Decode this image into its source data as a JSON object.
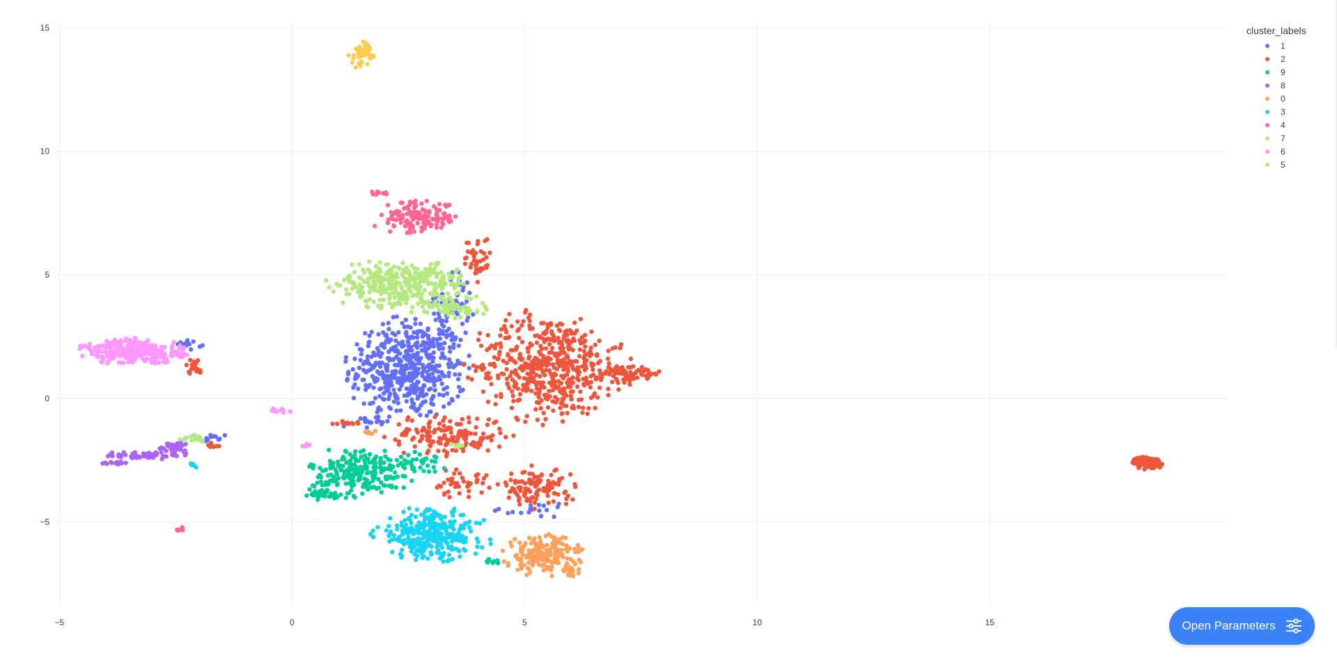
{
  "chart_data": {
    "type": "scatter",
    "title": "",
    "xlabel": "",
    "ylabel": "",
    "xlim": [
      -5.2,
      20.1
    ],
    "ylim": [
      -8.5,
      15.5
    ],
    "x_ticks": [
      -5,
      0,
      5,
      10,
      15
    ],
    "y_ticks": [
      -5,
      0,
      5,
      10,
      15
    ],
    "x_tick_labels": [
      "−5",
      "0",
      "5",
      "10",
      "15"
    ],
    "y_tick_labels": [
      "−5",
      "0",
      "5",
      "10",
      "15"
    ],
    "grid": true,
    "legend": {
      "title": "cluster_labels",
      "placement": "top-right",
      "entries": [
        "1",
        "2",
        "9",
        "8",
        "0",
        "3",
        "4",
        "7",
        "6",
        "5"
      ]
    },
    "series": [
      {
        "name": "1",
        "color": "#636efa",
        "regions": [
          {
            "cx": 2.5,
            "cy": 1.2,
            "rx": 1.25,
            "ry": 2.0,
            "n": 520
          },
          {
            "cx": 3.4,
            "cy": 3.8,
            "rx": 0.5,
            "ry": 1.3,
            "n": 60
          },
          {
            "cx": -2.2,
            "cy": 2.2,
            "rx": 0.25,
            "ry": 0.2,
            "n": 14
          },
          {
            "cx": -1.8,
            "cy": -1.6,
            "rx": 0.5,
            "ry": 0.15,
            "n": 14
          },
          {
            "cx": 5.2,
            "cy": -4.5,
            "rx": 0.8,
            "ry": 0.3,
            "n": 18
          },
          {
            "cx": 1.6,
            "cy": -1.0,
            "rx": 0.5,
            "ry": 0.3,
            "n": 16
          }
        ]
      },
      {
        "name": "2",
        "color": "#ef553b",
        "regions": [
          {
            "cx": 5.5,
            "cy": 1.3,
            "rx": 1.6,
            "ry": 2.1,
            "n": 520
          },
          {
            "cx": 7.3,
            "cy": 1.0,
            "rx": 0.7,
            "ry": 0.4,
            "n": 70
          },
          {
            "cx": 3.3,
            "cy": -1.5,
            "rx": 1.3,
            "ry": 0.8,
            "n": 160
          },
          {
            "cx": 5.3,
            "cy": -3.6,
            "rx": 0.8,
            "ry": 0.8,
            "n": 110
          },
          {
            "cx": 4.0,
            "cy": 5.6,
            "rx": 0.3,
            "ry": 1.0,
            "n": 40
          },
          {
            "cx": 3.6,
            "cy": -3.4,
            "rx": 0.6,
            "ry": 0.6,
            "n": 40
          },
          {
            "cx": 18.4,
            "cy": -2.6,
            "rx": 0.3,
            "ry": 0.25,
            "n": 90
          },
          {
            "cx": -2.1,
            "cy": 1.3,
            "rx": 0.18,
            "ry": 0.3,
            "n": 18
          },
          {
            "cx": 1.1,
            "cy": -1.0,
            "rx": 0.4,
            "ry": 0.1,
            "n": 12
          },
          {
            "cx": -1.7,
            "cy": -1.9,
            "rx": 0.2,
            "ry": 0.15,
            "n": 8
          }
        ]
      },
      {
        "name": "9",
        "color": "#00cc96",
        "regions": [
          {
            "cx": 1.5,
            "cy": -3.0,
            "rx": 1.1,
            "ry": 1.0,
            "n": 240
          },
          {
            "cx": 0.6,
            "cy": -3.9,
            "rx": 0.5,
            "ry": 0.25,
            "n": 30
          },
          {
            "cx": 2.8,
            "cy": -2.6,
            "rx": 0.5,
            "ry": 0.4,
            "n": 30
          },
          {
            "cx": 4.4,
            "cy": -6.6,
            "rx": 0.3,
            "ry": 0.1,
            "n": 10
          }
        ]
      },
      {
        "name": "8",
        "color": "#ab63fa",
        "regions": [
          {
            "cx": -3.2,
            "cy": -2.3,
            "rx": 0.85,
            "ry": 0.15,
            "n": 55
          },
          {
            "cx": -2.5,
            "cy": -2.0,
            "rx": 0.4,
            "ry": 0.25,
            "n": 40
          },
          {
            "cx": -3.8,
            "cy": -2.6,
            "rx": 0.3,
            "ry": 0.08,
            "n": 14
          }
        ]
      },
      {
        "name": "0",
        "color": "#ffa15a",
        "regions": [
          {
            "cx": 5.4,
            "cy": -6.3,
            "rx": 0.8,
            "ry": 0.8,
            "n": 190
          },
          {
            "cx": 6.0,
            "cy": -7.0,
            "rx": 0.2,
            "ry": 0.4,
            "n": 20
          },
          {
            "cx": 1.7,
            "cy": -1.4,
            "rx": 0.3,
            "ry": 0.08,
            "n": 6
          }
        ]
      },
      {
        "name": "3",
        "color": "#19d3f3",
        "regions": [
          {
            "cx": 3.0,
            "cy": -5.5,
            "rx": 1.2,
            "ry": 1.0,
            "n": 320
          },
          {
            "cx": -2.1,
            "cy": -2.7,
            "rx": 0.1,
            "ry": 0.1,
            "n": 6
          }
        ]
      },
      {
        "name": "4",
        "color": "#ff6692",
        "regions": [
          {
            "cx": 2.7,
            "cy": 7.3,
            "rx": 0.9,
            "ry": 0.65,
            "n": 150
          },
          {
            "cx": 1.9,
            "cy": 8.3,
            "rx": 0.2,
            "ry": 0.1,
            "n": 8
          },
          {
            "cx": -2.4,
            "cy": -5.3,
            "rx": 0.08,
            "ry": 0.1,
            "n": 8
          }
        ]
      },
      {
        "name": "7",
        "color": "#b6e880",
        "regions": [
          {
            "cx": 2.3,
            "cy": 4.6,
            "rx": 1.5,
            "ry": 0.9,
            "n": 340
          },
          {
            "cx": 3.4,
            "cy": 3.7,
            "rx": 0.8,
            "ry": 0.5,
            "n": 60
          },
          {
            "cx": -2.1,
            "cy": -1.6,
            "rx": 0.3,
            "ry": 0.15,
            "n": 14
          },
          {
            "cx": 3.6,
            "cy": -1.9,
            "rx": 0.2,
            "ry": 0.15,
            "n": 6
          }
        ]
      },
      {
        "name": "6",
        "color": "#ff97ff",
        "regions": [
          {
            "cx": -3.4,
            "cy": 1.9,
            "rx": 1.1,
            "ry": 0.5,
            "n": 280
          },
          {
            "cx": -0.2,
            "cy": -0.5,
            "rx": 0.35,
            "ry": 0.12,
            "n": 14
          },
          {
            "cx": 0.3,
            "cy": -1.9,
            "rx": 0.12,
            "ry": 0.08,
            "n": 6
          }
        ]
      },
      {
        "name": "5",
        "color": "#fecb52",
        "regions": [
          {
            "cx": 1.5,
            "cy": 13.9,
            "rx": 0.25,
            "ry": 0.5,
            "n": 40
          }
        ]
      }
    ]
  },
  "ui": {
    "open_parameters_label": "Open Parameters"
  }
}
